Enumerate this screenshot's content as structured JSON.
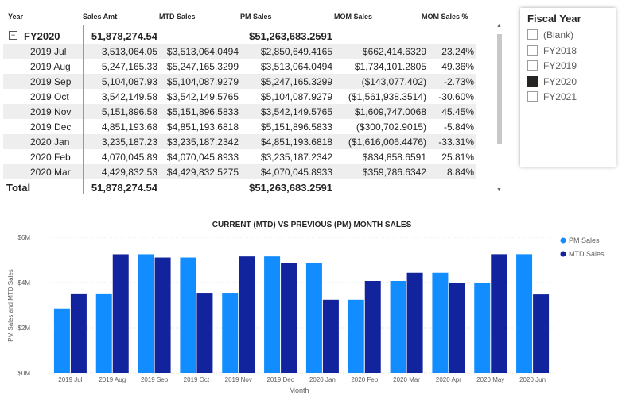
{
  "matrix": {
    "headers": {
      "year": "Year",
      "sales": "Sales Amt",
      "mtd": "MTD Sales",
      "pm": "PM Sales",
      "mom": "MOM Sales",
      "pct": "MOM Sales %"
    },
    "collapse_glyph": "−",
    "group": {
      "label": "FY2020",
      "sales": "51,878,274.54",
      "pm": "$51,263,683.2591"
    },
    "rows": [
      {
        "year": "2019 Jul",
        "sales": "3,513,064.05",
        "mtd": "$3,513,064.0494",
        "pm": "$2,850,649.4165",
        "mom": "$662,414.6329",
        "pct": "23.24%"
      },
      {
        "year": "2019 Aug",
        "sales": "5,247,165.33",
        "mtd": "$5,247,165.3299",
        "pm": "$3,513,064.0494",
        "mom": "$1,734,101.2805",
        "pct": "49.36%"
      },
      {
        "year": "2019 Sep",
        "sales": "5,104,087.93",
        "mtd": "$5,104,087.9279",
        "pm": "$5,247,165.3299",
        "mom": "($143,077.402)",
        "pct": "-2.73%"
      },
      {
        "year": "2019 Oct",
        "sales": "3,542,149.58",
        "mtd": "$3,542,149.5765",
        "pm": "$5,104,087.9279",
        "mom": "($1,561,938.3514)",
        "pct": "-30.60%"
      },
      {
        "year": "2019 Nov",
        "sales": "5,151,896.58",
        "mtd": "$5,151,896.5833",
        "pm": "$3,542,149.5765",
        "mom": "$1,609,747.0068",
        "pct": "45.45%"
      },
      {
        "year": "2019 Dec",
        "sales": "4,851,193.68",
        "mtd": "$4,851,193.6818",
        "pm": "$5,151,896.5833",
        "mom": "($300,702.9015)",
        "pct": "-5.84%"
      },
      {
        "year": "2020 Jan",
        "sales": "3,235,187.23",
        "mtd": "$3,235,187.2342",
        "pm": "$4,851,193.6818",
        "mom": "($1,616,006.4476)",
        "pct": "-33.31%"
      },
      {
        "year": "2020 Feb",
        "sales": "4,070,045.89",
        "mtd": "$4,070,045.8933",
        "pm": "$3,235,187.2342",
        "mom": "$834,858.6591",
        "pct": "25.81%"
      },
      {
        "year": "2020 Mar",
        "sales": "4,429,832.53",
        "mtd": "$4,429,832.5275",
        "pm": "$4,070,045.8933",
        "mom": "$359,786.6342",
        "pct": "8.84%"
      }
    ],
    "total": {
      "label": "Total",
      "sales": "51,878,274.54",
      "pm": "$51,263,683.2591"
    }
  },
  "slicer": {
    "title": "Fiscal Year",
    "items": [
      {
        "label": "(Blank)",
        "selected": false
      },
      {
        "label": "FY2018",
        "selected": false
      },
      {
        "label": "FY2019",
        "selected": false
      },
      {
        "label": "FY2020",
        "selected": true
      },
      {
        "label": "FY2021",
        "selected": false
      }
    ]
  },
  "chart_data": {
    "type": "bar",
    "title": "CURRENT (MTD) VS PREVIOUS (PM) MONTH SALES",
    "xlabel": "Month",
    "ylabel": "PM Sales and MTD Sales",
    "ylim": [
      0,
      6000000
    ],
    "yticks": [
      {
        "value": 0,
        "label": "$0M"
      },
      {
        "value": 2000000,
        "label": "$2M"
      },
      {
        "value": 4000000,
        "label": "$4M"
      },
      {
        "value": 6000000,
        "label": "$6M"
      }
    ],
    "grid": true,
    "legend_position": "top-right",
    "categories": [
      "2019 Jul",
      "2019 Aug",
      "2019 Sep",
      "2019 Oct",
      "2019 Nov",
      "2019 Dec",
      "2020 Jan",
      "2020 Feb",
      "2020 Mar",
      "2020 Apr",
      "2020 May",
      "2020 Jun"
    ],
    "series": [
      {
        "name": "PM Sales",
        "color": "#118DFF",
        "values": [
          2850649,
          3513064,
          5247165,
          5104088,
          3542150,
          5151897,
          4851194,
          3235187,
          4070046,
          4429833,
          4000000,
          5250000
        ]
      },
      {
        "name": "MTD Sales",
        "color": "#12239E",
        "values": [
          3513064,
          5247165,
          5104088,
          3542150,
          5151897,
          4851194,
          3235187,
          4070046,
          4429833,
          4000000,
          5250000,
          3470000
        ]
      }
    ]
  }
}
